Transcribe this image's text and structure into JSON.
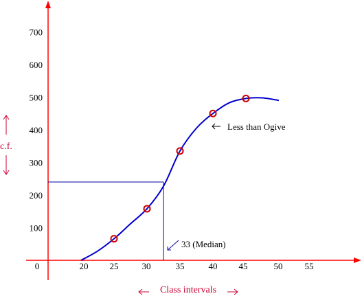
{
  "chart_data": {
    "type": "line",
    "title": "",
    "xlabel": "Class intervals",
    "ylabel": "c.f.",
    "x_ticks": [
      "0",
      "20",
      "25",
      "30",
      "35",
      "40",
      "45",
      "50",
      "55"
    ],
    "y_ticks": [
      "100",
      "200",
      "300",
      "400",
      "500",
      "600",
      "700"
    ],
    "xlim": [
      15,
      55
    ],
    "ylim": [
      0,
      700
    ],
    "series": [
      {
        "name": "Less than Ogive",
        "x": [
          20,
          25,
          30,
          35,
          40,
          45
        ],
        "y": [
          0,
          66,
          158,
          335,
          450,
          496
        ],
        "color": "#0000cc",
        "marker_color": "#cc0000"
      }
    ],
    "curve": {
      "x": [
        20,
        22.5,
        25,
        27.5,
        30,
        32.5,
        35,
        37.5,
        40,
        42.5,
        45,
        47.5,
        50
      ],
      "y": [
        0,
        28,
        66,
        112,
        158,
        227,
        335,
        405,
        450,
        483,
        496,
        498,
        490
      ]
    },
    "annotations": {
      "ogive_label": "Less than Ogive",
      "median_label": "33 (Median)",
      "median_x": 32.5,
      "median_y": 240
    },
    "colors": {
      "axis": "#ff0000",
      "curve": "#0000cc",
      "marker": "#cc0000",
      "guide": "#000099",
      "axis_label": "#cc0033",
      "text": "#000000"
    }
  }
}
